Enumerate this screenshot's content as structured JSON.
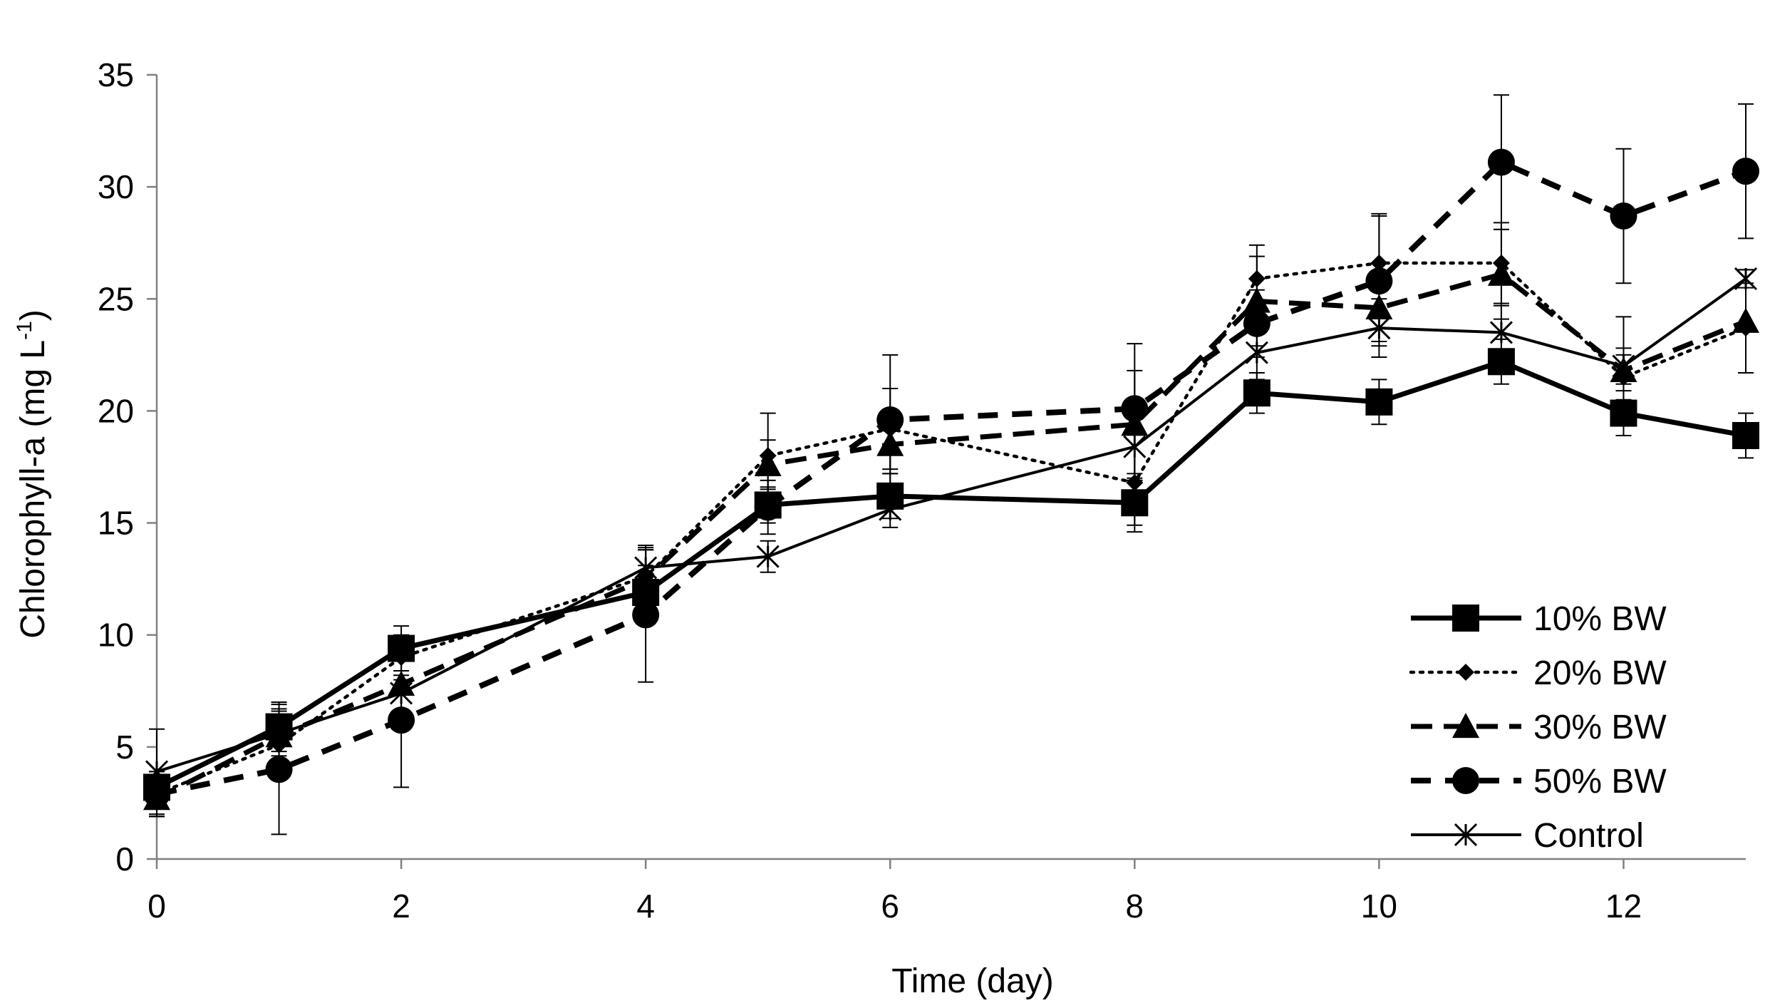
{
  "chart_data": {
    "type": "line",
    "title": "",
    "xlabel": "Time (day)",
    "ylabel": {
      "prefix": "Chlorophyll-a (mg L",
      "superscript": "-1",
      "suffix": ")"
    },
    "xlim": [
      0,
      13
    ],
    "ylim": [
      0,
      35
    ],
    "xticks": [
      0,
      2,
      4,
      6,
      8,
      10,
      12
    ],
    "xtick_labels": [
      "0",
      "2",
      "4",
      "6",
      "8",
      "10",
      "12"
    ],
    "yticks": [
      0,
      5,
      10,
      15,
      20,
      25,
      30,
      35
    ],
    "ytick_labels": [
      "0",
      "5",
      "10",
      "15",
      "20",
      "25",
      "30",
      "35"
    ],
    "grid": false,
    "legend_position": "bottom-right",
    "x": [
      0,
      1,
      2,
      4,
      5,
      6,
      8,
      9,
      10,
      11,
      12,
      13
    ],
    "series": [
      {
        "name": "10% BW",
        "marker": "square",
        "line_style": "solid-thick",
        "values": [
          3.2,
          5.9,
          9.4,
          11.9,
          15.8,
          16.2,
          15.9,
          20.8,
          20.4,
          22.2,
          19.9,
          18.9
        ],
        "errors": [
          0.5,
          1.1,
          1.0,
          1.2,
          0.8,
          1.0,
          1.0,
          0.9,
          1.0,
          1.0,
          1.0,
          1.0
        ]
      },
      {
        "name": "20% BW",
        "marker": "diamond",
        "line_style": "dotted",
        "values": [
          2.9,
          5.1,
          9.0,
          12.6,
          18.0,
          19.2,
          16.8,
          25.9,
          26.6,
          26.6,
          21.5,
          23.7
        ],
        "errors": [
          1.0,
          1.0,
          1.0,
          1.2,
          1.9,
          1.8,
          2.2,
          1.5,
          2.2,
          1.8,
          1.0,
          2.0
        ]
      },
      {
        "name": "30% BW",
        "marker": "triangle",
        "line_style": "dashed",
        "values": [
          2.7,
          5.5,
          7.8,
          12.5,
          17.6,
          18.5,
          19.4,
          24.9,
          24.6,
          26.1,
          21.8,
          24.0
        ],
        "errors": [
          0.8,
          1.2,
          1.2,
          1.3,
          1.1,
          1.3,
          2.4,
          2.0,
          1.5,
          2.0,
          2.4,
          2.3
        ]
      },
      {
        "name": "50% BW",
        "marker": "circle",
        "line_style": "dashed-thick",
        "values": [
          2.9,
          4.0,
          6.2,
          10.9,
          15.7,
          19.6,
          20.1,
          23.9,
          25.8,
          31.1,
          28.7,
          30.7
        ],
        "errors": [
          1.0,
          2.9,
          3.0,
          3.0,
          1.2,
          2.9,
          2.9,
          1.5,
          2.9,
          3.0,
          3.0,
          3.0
        ]
      },
      {
        "name": "Control",
        "marker": "star",
        "line_style": "solid",
        "values": [
          3.9,
          5.6,
          7.4,
          13.0,
          13.5,
          15.6,
          18.4,
          22.6,
          23.7,
          23.5,
          22.0,
          25.9
        ],
        "errors": [
          1.9,
          1.0,
          0.8,
          1.0,
          0.7,
          0.8,
          1.5,
          1.2,
          1.3,
          1.2,
          0.8,
          0.4
        ]
      }
    ]
  }
}
